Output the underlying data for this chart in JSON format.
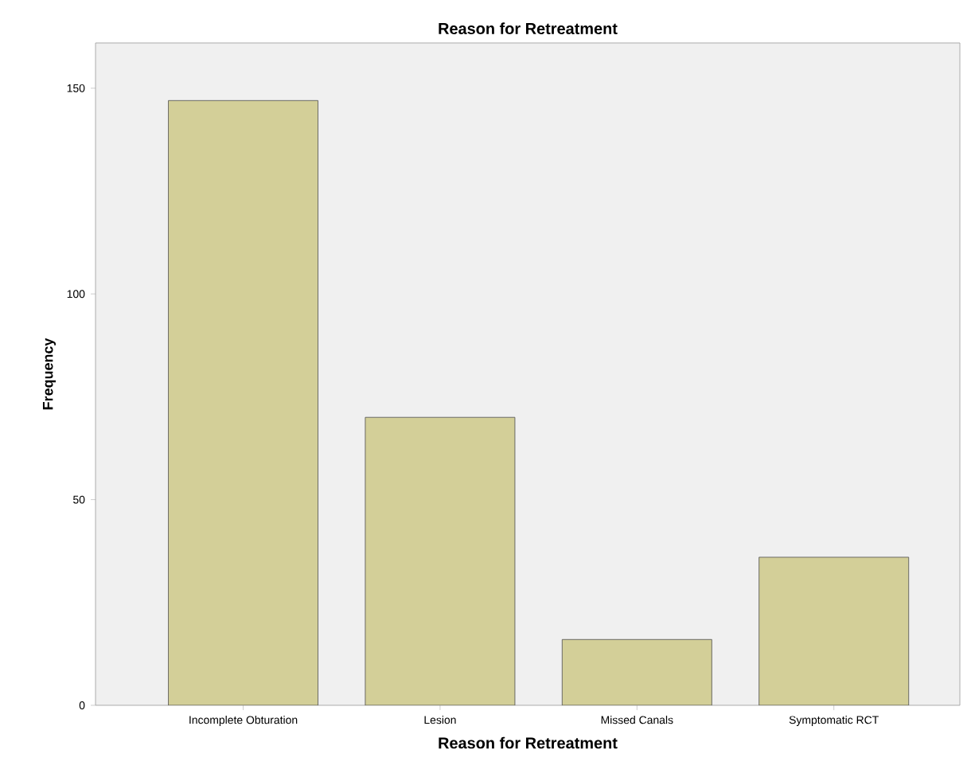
{
  "chart_data": {
    "type": "bar",
    "title": "Reason for Retreatment",
    "xlabel": "Reason for Retreatment",
    "ylabel": "Frequency",
    "categories": [
      "Incomplete Obturation",
      "Lesion",
      "Missed Canals",
      "Symptomatic RCT"
    ],
    "values": [
      147,
      70,
      16,
      36
    ],
    "color": "#d3cf98",
    "ylim": [
      0,
      161
    ],
    "yticks": [
      0,
      50,
      100,
      150
    ],
    "grid": false
  }
}
